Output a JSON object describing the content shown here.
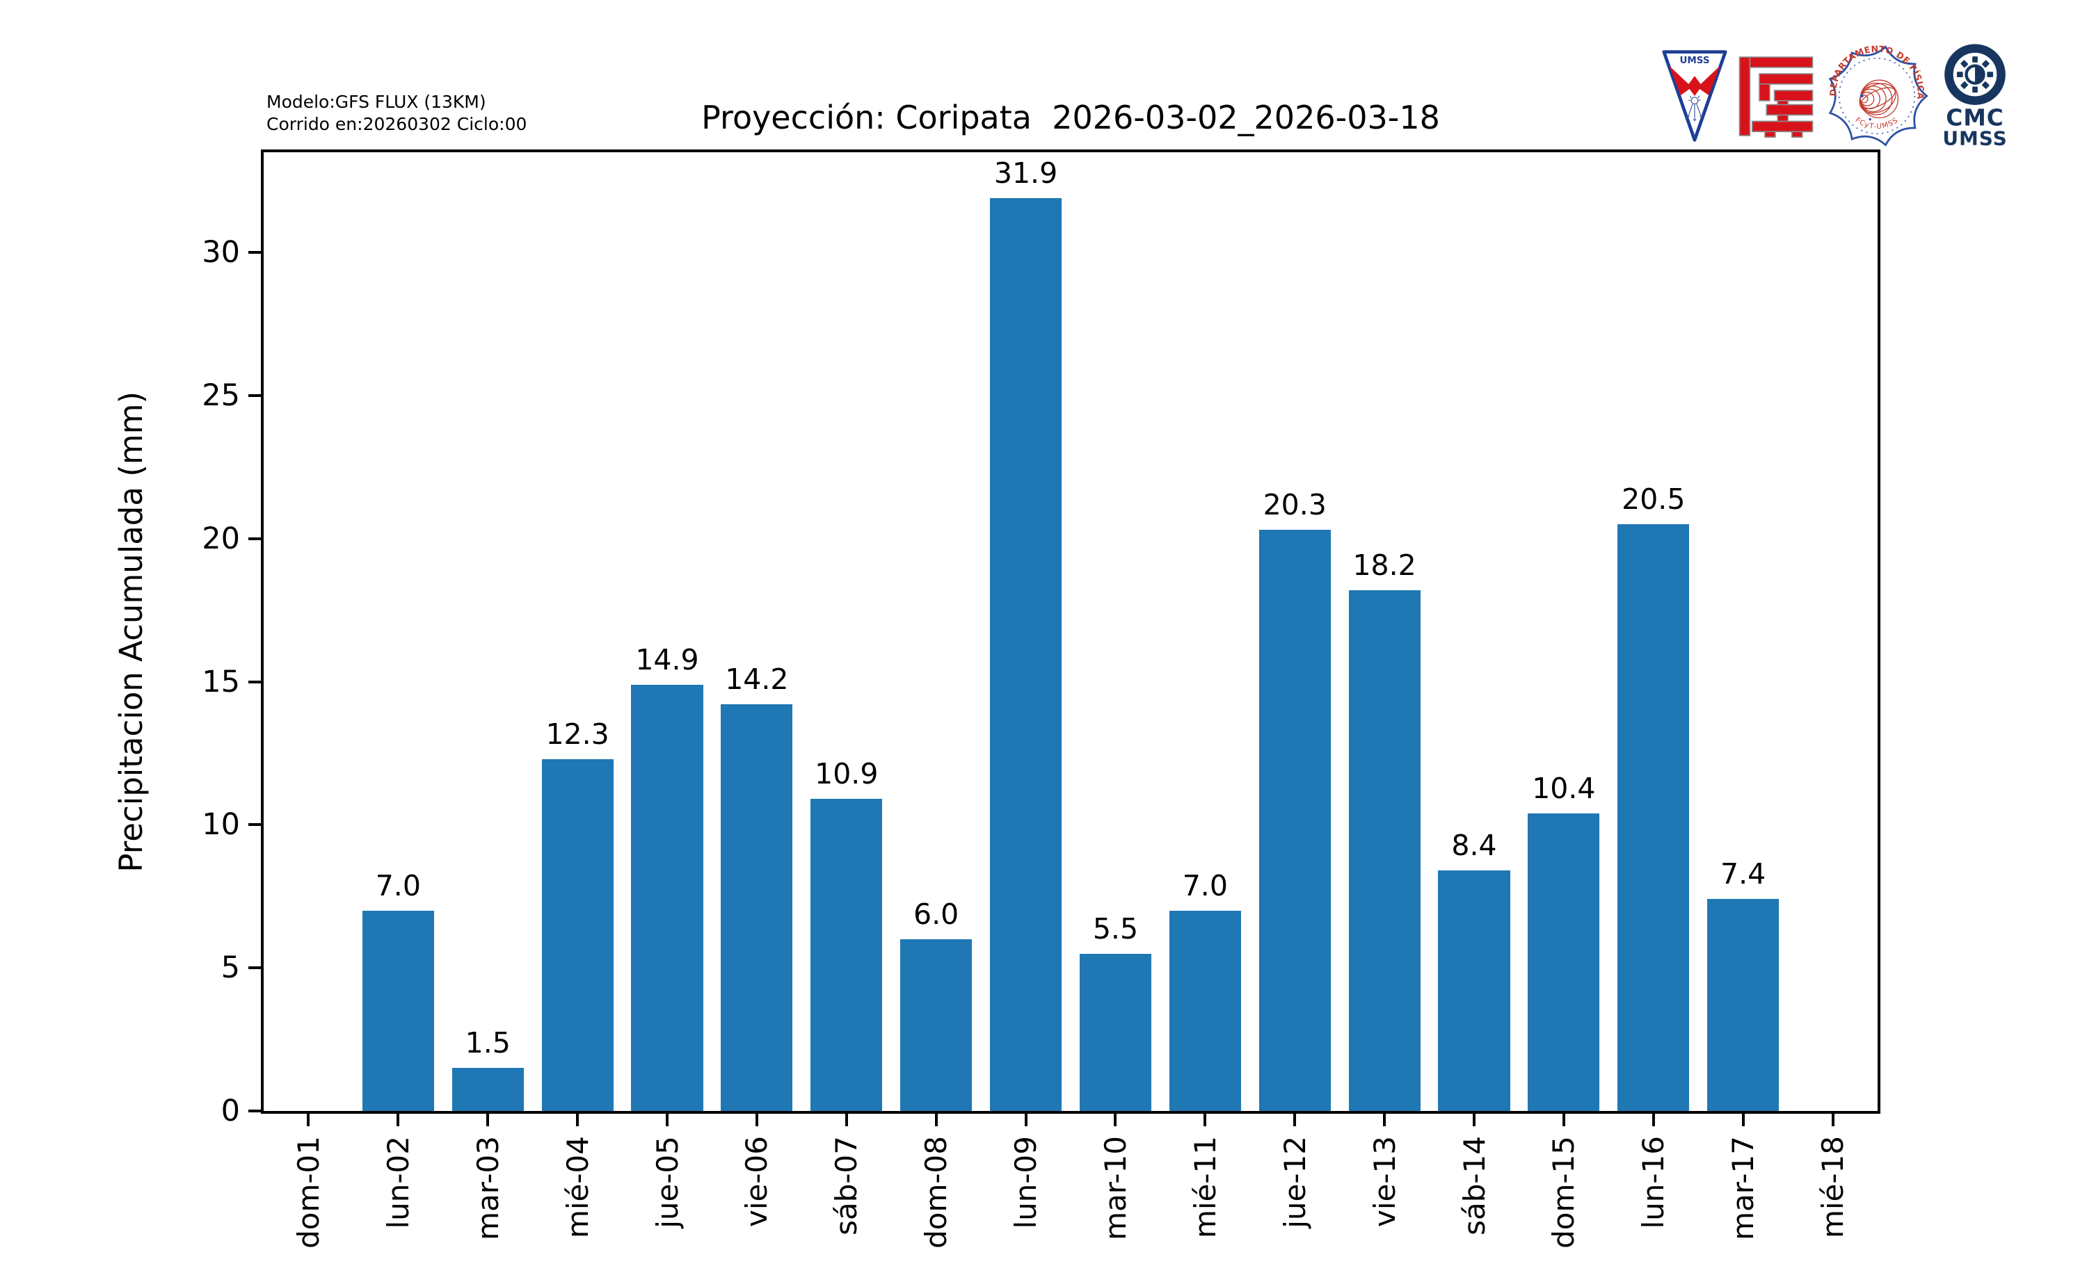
{
  "header": {
    "model_line1": "Modelo:GFS FLUX (13KM)",
    "model_line2": "Corrido en:20260302 Ciclo:00",
    "logos": [
      {
        "label": "UMSS"
      },
      {
        "label": "FCyT"
      },
      {
        "label": "DEPARTAMENTO DE FÍSICA",
        "sub": "FCyT-UMSS"
      },
      {
        "line1": "CMC",
        "line2": "UMSS"
      }
    ]
  },
  "chart_data": {
    "type": "bar",
    "title": "Proyección: Coripata  2026-03-02_2026-03-18",
    "categories": [
      "dom-01",
      "lun-02",
      "mar-03",
      "mié-04",
      "jue-05",
      "vie-06",
      "sáb-07",
      "dom-08",
      "lun-09",
      "mar-10",
      "mié-11",
      "jue-12",
      "vie-13",
      "sáb-14",
      "dom-15",
      "lun-16",
      "mar-17",
      "mié-18"
    ],
    "values": [
      0,
      7.0,
      1.5,
      12.3,
      14.9,
      14.2,
      10.9,
      6.0,
      31.9,
      5.5,
      7.0,
      20.3,
      18.2,
      8.4,
      10.4,
      20.5,
      7.4,
      0
    ],
    "bar_labels": [
      "",
      "7.0",
      "1.5",
      "12.3",
      "14.9",
      "14.2",
      "10.9",
      "6.0",
      "31.9",
      "5.5",
      "7.0",
      "20.3",
      "18.2",
      "8.4",
      "10.4",
      "20.5",
      "7.4",
      ""
    ],
    "xlabel": "",
    "ylabel": "Precipitacion Acumulada (mm)",
    "yticks": [
      0,
      5,
      10,
      15,
      20,
      25,
      30
    ],
    "ylim": [
      0,
      33.5
    ],
    "bar_color": "#1f77b4",
    "bar_width_fraction": 0.8,
    "grid": false,
    "legend": null
  }
}
